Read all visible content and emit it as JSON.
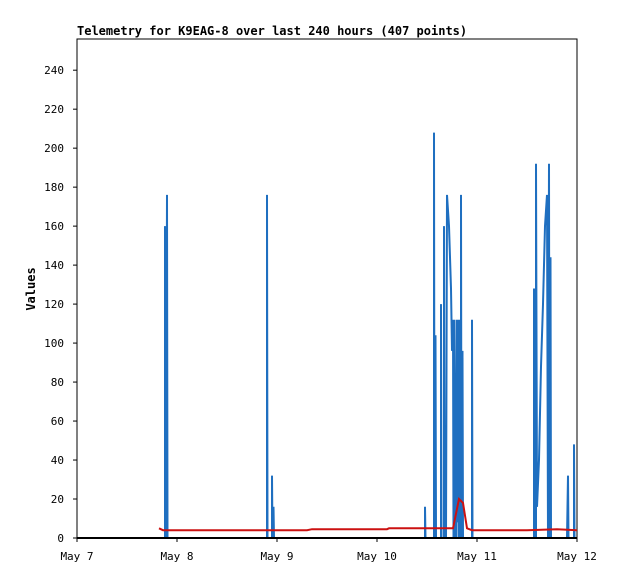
{
  "chart_data": {
    "type": "line",
    "title": "Telemetry for K9EAG-8 over last 240 hours (407 points)",
    "ylabel": "Values",
    "xlabel": "",
    "ylim": [
      0,
      256
    ],
    "xlim": [
      0,
      5
    ],
    "x_ticks": [
      {
        "value": 0,
        "label": "May 7"
      },
      {
        "value": 1,
        "label": "May 8"
      },
      {
        "value": 2,
        "label": "May 9"
      },
      {
        "value": 3,
        "label": "May 10"
      },
      {
        "value": 4,
        "label": "May 11"
      },
      {
        "value": 5,
        "label": "May 12"
      }
    ],
    "y_ticks": [
      0,
      20,
      40,
      60,
      80,
      100,
      120,
      140,
      160,
      180,
      200,
      220,
      240
    ],
    "grid": false,
    "series": [
      {
        "color": "#1f6fc0",
        "points": [
          [
            0.88,
            0
          ],
          [
            0.88,
            160
          ],
          [
            0.89,
            0
          ],
          [
            0.9,
            176
          ],
          [
            0.905,
            0
          ],
          [
            1.9,
            0
          ],
          [
            1.9,
            176
          ],
          [
            1.905,
            0
          ],
          [
            1.95,
            0
          ],
          [
            1.95,
            32
          ],
          [
            1.955,
            0
          ],
          [
            1.965,
            0
          ],
          [
            1.965,
            16
          ],
          [
            1.97,
            0
          ],
          [
            3.48,
            0
          ],
          [
            3.48,
            16
          ],
          [
            3.485,
            0
          ],
          [
            3.57,
            0
          ],
          [
            3.57,
            208
          ],
          [
            3.575,
            0
          ],
          [
            3.585,
            0
          ],
          [
            3.585,
            104
          ],
          [
            3.59,
            0
          ],
          [
            3.64,
            0
          ],
          [
            3.64,
            120
          ],
          [
            3.645,
            0
          ],
          [
            3.67,
            0
          ],
          [
            3.67,
            160
          ],
          [
            3.675,
            0
          ],
          [
            3.69,
            0
          ],
          [
            3.7,
            176
          ],
          [
            3.72,
            160
          ],
          [
            3.74,
            128
          ],
          [
            3.75,
            96
          ],
          [
            3.76,
            112
          ],
          [
            3.765,
            0
          ],
          [
            3.77,
            0
          ],
          [
            3.775,
            112
          ],
          [
            3.78,
            56
          ],
          [
            3.79,
            0
          ],
          [
            3.8,
            112
          ],
          [
            3.805,
            8
          ],
          [
            3.81,
            112
          ],
          [
            3.815,
            0
          ],
          [
            3.82,
            0
          ],
          [
            3.825,
            112
          ],
          [
            3.83,
            0
          ],
          [
            3.84,
            0
          ],
          [
            3.84,
            176
          ],
          [
            3.845,
            0
          ],
          [
            3.85,
            0
          ],
          [
            3.855,
            96
          ],
          [
            3.86,
            0
          ],
          [
            3.95,
            0
          ],
          [
            3.95,
            112
          ],
          [
            3.955,
            0
          ],
          [
            4.57,
            0
          ],
          [
            4.57,
            128
          ],
          [
            4.575,
            0
          ],
          [
            4.59,
            0
          ],
          [
            4.59,
            192
          ],
          [
            4.6,
            16
          ],
          [
            4.62,
            40
          ],
          [
            4.64,
            88
          ],
          [
            4.66,
            120
          ],
          [
            4.68,
            160
          ],
          [
            4.7,
            176
          ],
          [
            4.71,
            0
          ],
          [
            4.72,
            192
          ],
          [
            4.725,
            0
          ],
          [
            4.73,
            0
          ],
          [
            4.735,
            144
          ],
          [
            4.74,
            0
          ],
          [
            4.9,
            0
          ],
          [
            4.91,
            32
          ],
          [
            4.915,
            0
          ],
          [
            4.97,
            0
          ],
          [
            4.97,
            48
          ],
          [
            4.975,
            0
          ]
        ]
      },
      {
        "color": "#cc1111",
        "points": [
          [
            0.82,
            5
          ],
          [
            0.86,
            4
          ],
          [
            1.2,
            4
          ],
          [
            1.8,
            4
          ],
          [
            2.3,
            4
          ],
          [
            2.35,
            4.5
          ],
          [
            2.8,
            4.5
          ],
          [
            3.1,
            4.5
          ],
          [
            3.12,
            5
          ],
          [
            3.5,
            5
          ],
          [
            3.76,
            5
          ],
          [
            3.82,
            20
          ],
          [
            3.86,
            18
          ],
          [
            3.9,
            5
          ],
          [
            3.95,
            4
          ],
          [
            4.5,
            4
          ],
          [
            4.8,
            4.5
          ],
          [
            5.0,
            4
          ]
        ]
      }
    ]
  }
}
